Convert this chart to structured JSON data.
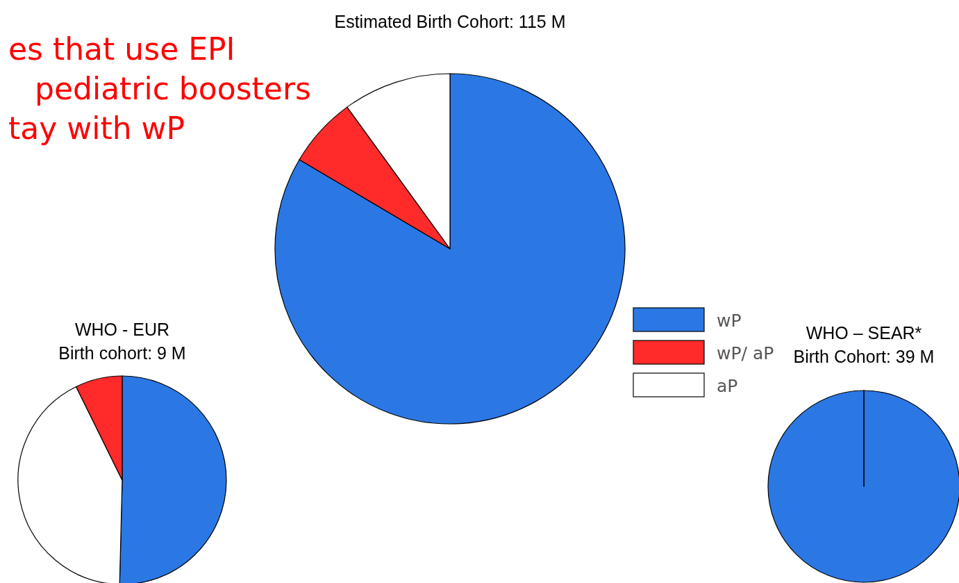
{
  "chart_data": [
    {
      "type": "pie",
      "title": "Estimated Birth Cohort: 115 M",
      "annotations": [
        "es that use EPI",
        "pediatric boosters",
        "tay with wP"
      ],
      "categories": [
        "wP",
        "wP/ aP",
        "aP"
      ],
      "values": [
        83.5,
        6.5,
        10
      ],
      "colors": [
        "#2b78e4",
        "#ff2a2a",
        "#ffffff"
      ],
      "legend": "right"
    },
    {
      "type": "pie",
      "title": "WHO - EUR",
      "subtitle": "Birth cohort: 9 M",
      "categories": [
        null,
        null,
        null
      ],
      "values": [
        50.4,
        42.3,
        7.3
      ],
      "colors": [
        "#2b78e4",
        "#ffffff",
        "#ff2a2a"
      ]
    },
    {
      "type": "pie",
      "title": "WHO – SEAR*",
      "subtitle": "Birth Cohort:  39 M",
      "categories": [
        null,
        null,
        null
      ],
      "values": [
        100,
        0,
        0
      ],
      "colors": [
        "#2b78e4",
        "#ffffff",
        "#ff2a2a"
      ]
    }
  ]
}
